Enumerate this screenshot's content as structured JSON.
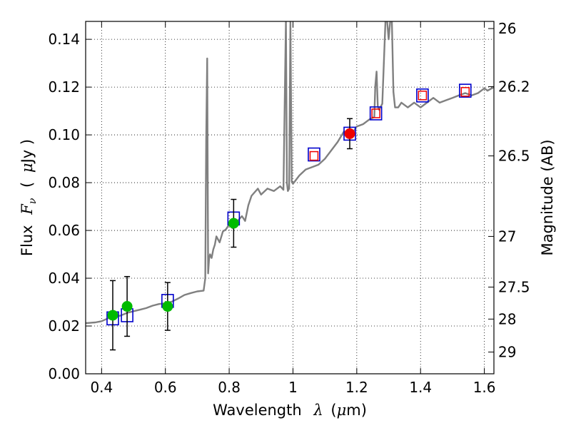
{
  "chart_data": {
    "type": "scatter",
    "xlabel_text": "Wavelength",
    "xlabel_symbol": "λ",
    "xlabel_unit_open": "(",
    "xlabel_unit_mu": "μ",
    "xlabel_unit_rest": "m)",
    "ylabel_text": "Flux",
    "ylabel_symbol": "F",
    "ylabel_sub": "ν",
    "ylabel_unit_open": "(",
    "ylabel_unit_mu": "μ",
    "ylabel_unit_rest": "Jy )",
    "y2label": "Magnitude (AB)",
    "xlim": [
      0.35,
      1.63
    ],
    "ylim": [
      0.0,
      0.1475
    ],
    "grid": true,
    "x_ticks": [
      0.4,
      0.6,
      0.8,
      1.0,
      1.2,
      1.4,
      1.6
    ],
    "x_tick_labels": [
      "0.4",
      "0.6",
      "0.8",
      "1",
      "1.2",
      "1.4",
      "1.6"
    ],
    "y_ticks": [
      0.0,
      0.02,
      0.04,
      0.06,
      0.08,
      0.1,
      0.12,
      0.14
    ],
    "y_tick_labels": [
      "0.00",
      "0.02",
      "0.04",
      "0.06",
      "0.08",
      "0.10",
      "0.12",
      "0.14"
    ],
    "mag_ticks": [
      {
        "label": "26",
        "flux": 0.1445
      },
      {
        "label": "26.2",
        "flux": 0.1202
      },
      {
        "label": "26.5",
        "flux": 0.0912
      },
      {
        "label": "27",
        "flux": 0.0575
      },
      {
        "label": "27.5",
        "flux": 0.0363
      },
      {
        "label": "28",
        "flux": 0.0229
      },
      {
        "label": "29",
        "flux": 0.0091
      }
    ],
    "series": [
      {
        "name": "model-spectrum",
        "style": "line",
        "color": "#808080",
        "x": [
          0.35,
          0.38,
          0.4,
          0.42,
          0.44,
          0.46,
          0.48,
          0.5,
          0.52,
          0.54,
          0.56,
          0.58,
          0.6,
          0.62,
          0.64,
          0.66,
          0.68,
          0.7,
          0.72,
          0.725,
          0.728,
          0.731,
          0.734,
          0.737,
          0.74,
          0.745,
          0.75,
          0.755,
          0.76,
          0.77,
          0.78,
          0.79,
          0.8,
          0.81,
          0.82,
          0.83,
          0.84,
          0.85,
          0.86,
          0.87,
          0.88,
          0.89,
          0.9,
          0.92,
          0.94,
          0.96,
          0.97,
          0.978,
          0.981,
          0.984,
          0.988,
          0.992,
          0.996,
          1.0,
          1.02,
          1.04,
          1.06,
          1.08,
          1.1,
          1.12,
          1.14,
          1.16,
          1.18,
          1.2,
          1.22,
          1.24,
          1.255,
          1.258,
          1.262,
          1.266,
          1.27,
          1.28,
          1.29,
          1.295,
          1.3,
          1.305,
          1.31,
          1.315,
          1.32,
          1.33,
          1.34,
          1.36,
          1.38,
          1.4,
          1.42,
          1.44,
          1.46,
          1.48,
          1.5,
          1.52,
          1.54,
          1.56,
          1.58,
          1.6,
          1.61,
          1.63
        ],
        "y": [
          0.0212,
          0.0215,
          0.022,
          0.0232,
          0.0238,
          0.0244,
          0.0255,
          0.0262,
          0.0268,
          0.0275,
          0.0285,
          0.0292,
          0.0295,
          0.0302,
          0.0315,
          0.033,
          0.0338,
          0.0345,
          0.0348,
          0.04,
          0.098,
          0.132,
          0.042,
          0.048,
          0.05,
          0.0485,
          0.052,
          0.054,
          0.0575,
          0.055,
          0.0595,
          0.0605,
          0.0625,
          0.061,
          0.063,
          0.0645,
          0.066,
          0.064,
          0.0705,
          0.0745,
          0.076,
          0.0775,
          0.075,
          0.0775,
          0.0765,
          0.0785,
          0.077,
          0.148,
          0.08,
          0.0765,
          0.0775,
          0.148,
          0.0805,
          0.0795,
          0.083,
          0.0855,
          0.0865,
          0.0875,
          0.09,
          0.0935,
          0.097,
          0.1015,
          0.0995,
          0.1035,
          0.1045,
          0.1065,
          0.1075,
          0.1205,
          0.1265,
          0.112,
          0.1105,
          0.113,
          0.148,
          0.148,
          0.14,
          0.148,
          0.148,
          0.118,
          0.1115,
          0.1115,
          0.1135,
          0.1115,
          0.1135,
          0.1115,
          0.1135,
          0.1155,
          0.1135,
          0.1145,
          0.1155,
          0.1165,
          0.1175,
          0.1165,
          0.1175,
          0.1195,
          0.1185,
          0.12
        ]
      },
      {
        "name": "model-photometry",
        "style": "open-square",
        "color": "#0000cc",
        "x": [
          0.435,
          0.48,
          0.607,
          0.814,
          1.066,
          1.178,
          1.26,
          1.406,
          1.54
        ],
        "y": [
          0.0232,
          0.0245,
          0.0305,
          0.065,
          0.0918,
          0.1005,
          0.109,
          0.1165,
          0.1185
        ]
      },
      {
        "name": "observed-optical",
        "style": "filled-circle",
        "color": "#00bb00",
        "x": [
          0.435,
          0.48,
          0.607,
          0.814
        ],
        "y": [
          0.0245,
          0.0282,
          0.0282,
          0.063
        ],
        "yerr": [
          0.0145,
          0.0125,
          0.01,
          0.01
        ]
      },
      {
        "name": "observed-nir",
        "style": "filled-circle",
        "color": "#ee0000",
        "x": [
          1.178
        ],
        "y": [
          0.1005
        ],
        "yerr": [
          0.0063
        ]
      },
      {
        "name": "upper-limits",
        "style": "small-open-square",
        "color": "#ee0000",
        "x": [
          1.066,
          1.26,
          1.406,
          1.54
        ],
        "y": [
          0.0912,
          0.109,
          0.1165,
          0.118
        ]
      }
    ]
  }
}
